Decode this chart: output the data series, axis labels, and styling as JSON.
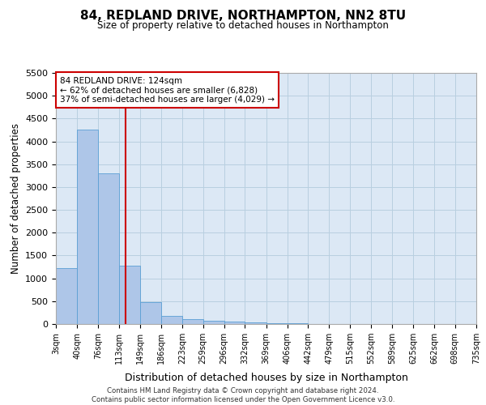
{
  "title_line1": "84, REDLAND DRIVE, NORTHAMPTON, NN2 8TU",
  "title_line2": "Size of property relative to detached houses in Northampton",
  "xlabel": "Distribution of detached houses by size in Northampton",
  "ylabel": "Number of detached properties",
  "footer_line1": "Contains HM Land Registry data © Crown copyright and database right 2024.",
  "footer_line2": "Contains public sector information licensed under the Open Government Licence v3.0.",
  "annotation_line1": "84 REDLAND DRIVE: 124sqm",
  "annotation_line2": "← 62% of detached houses are smaller (6,828)",
  "annotation_line3": "37% of semi-detached houses are larger (4,029) →",
  "bar_left_edges": [
    3,
    40,
    76,
    113,
    149,
    186,
    223,
    259,
    296,
    332,
    369,
    406,
    442,
    479,
    515,
    552,
    589,
    625,
    662,
    698
  ],
  "bar_widths": [
    37,
    36,
    37,
    36,
    37,
    37,
    36,
    37,
    36,
    37,
    37,
    36,
    37,
    36,
    37,
    37,
    36,
    37,
    36,
    37
  ],
  "bar_heights": [
    1230,
    4250,
    3300,
    1280,
    480,
    185,
    100,
    65,
    50,
    30,
    20,
    10,
    5,
    0,
    0,
    0,
    0,
    0,
    0,
    0
  ],
  "bar_color": "#aec6e8",
  "bar_edge_color": "#5a9fd4",
  "marker_x": 124,
  "marker_color": "#cc0000",
  "ylim": [
    0,
    5500
  ],
  "yticks": [
    0,
    500,
    1000,
    1500,
    2000,
    2500,
    3000,
    3500,
    4000,
    4500,
    5000,
    5500
  ],
  "xtick_labels": [
    "3sqm",
    "40sqm",
    "76sqm",
    "113sqm",
    "149sqm",
    "186sqm",
    "223sqm",
    "259sqm",
    "296sqm",
    "332sqm",
    "369sqm",
    "406sqm",
    "442sqm",
    "479sqm",
    "515sqm",
    "552sqm",
    "589sqm",
    "625sqm",
    "662sqm",
    "698sqm",
    "735sqm"
  ],
  "xtick_positions": [
    3,
    40,
    76,
    113,
    149,
    186,
    223,
    259,
    296,
    332,
    369,
    406,
    442,
    479,
    515,
    552,
    589,
    625,
    662,
    698,
    735
  ],
  "xlim": [
    3,
    735
  ],
  "background_color": "#ffffff",
  "plot_bg_color": "#dce8f5",
  "grid_color": "#b8cfe0",
  "annotation_box_facecolor": "#ffffff",
  "annotation_box_edge": "#cc0000"
}
